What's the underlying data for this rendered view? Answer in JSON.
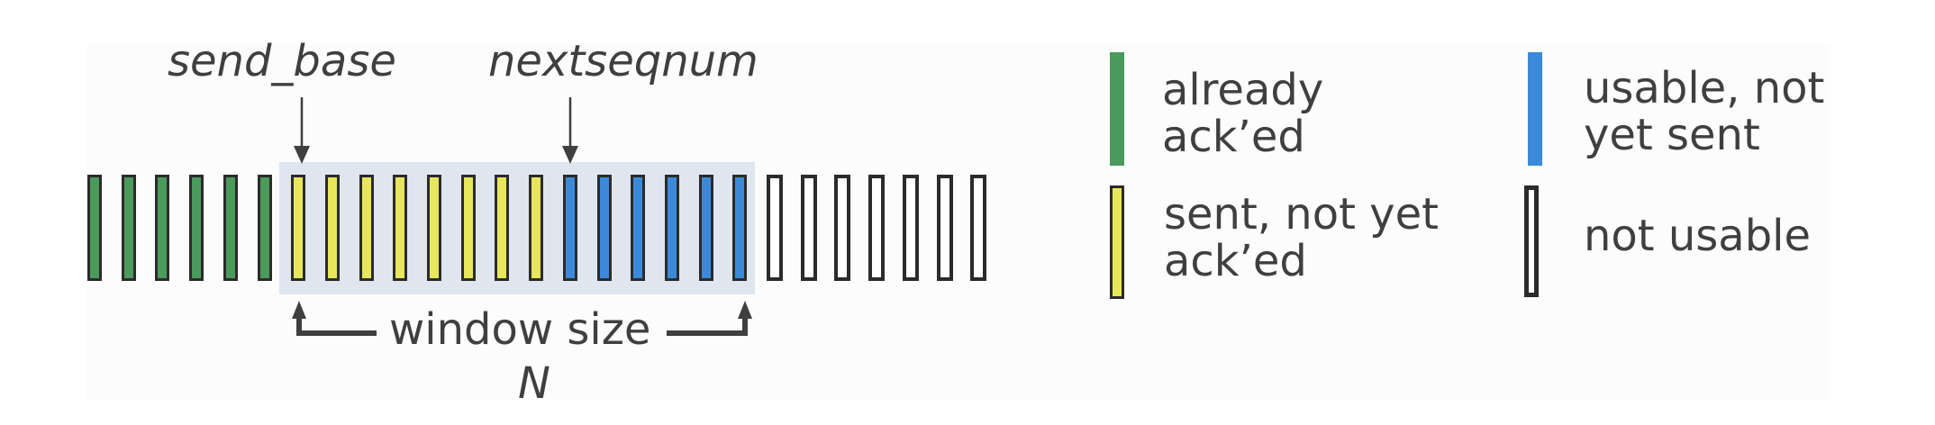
{
  "diagram": {
    "pointers": {
      "send_base": "send_base",
      "nextseqnum": "nextseqnum"
    },
    "window": {
      "label": "window size",
      "symbol": "N"
    },
    "sequence": {
      "already_acked_count": 6,
      "sent_not_acked_count": 8,
      "usable_not_sent_count": 6,
      "not_usable_count": 7
    },
    "legend": [
      {
        "key": "already-acked",
        "text": "already ack’ed",
        "color": "#4a9a5c"
      },
      {
        "key": "usable-not-sent",
        "text": "usable, not yet sent",
        "color": "#3b8ad9"
      },
      {
        "key": "sent-not-acked",
        "text": "sent, not yet ack’ed",
        "color": "#e7e65c"
      },
      {
        "key": "not-usable",
        "text": "not usable",
        "color": "#ffffff"
      }
    ]
  }
}
